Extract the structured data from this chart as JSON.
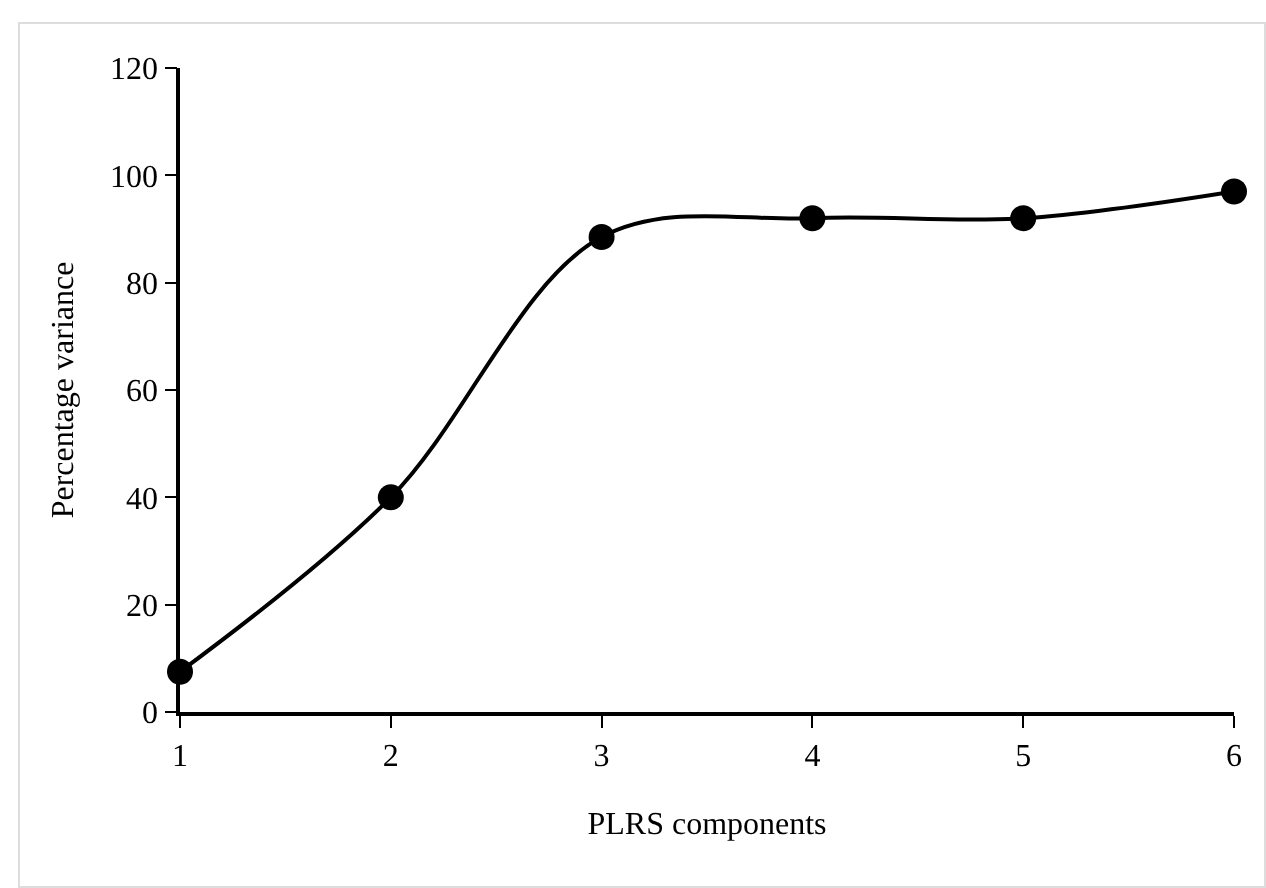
{
  "chart_data": {
    "type": "line",
    "xlabel": "PLRS components",
    "ylabel": "Percentage variance",
    "x": [
      1,
      2,
      3,
      4,
      5,
      6
    ],
    "series": [
      {
        "color": "#000000",
        "values": [
          7.5,
          40,
          88.5,
          92,
          92,
          97
        ]
      }
    ],
    "xlim": [
      1,
      6
    ],
    "xticks": [
      1,
      2,
      3,
      4,
      5,
      6
    ],
    "ylim": [
      0,
      120
    ],
    "yticks": [
      0,
      20,
      40,
      60,
      80,
      100,
      120
    ],
    "grid": false,
    "marker": "circle",
    "line_style": "solid"
  }
}
